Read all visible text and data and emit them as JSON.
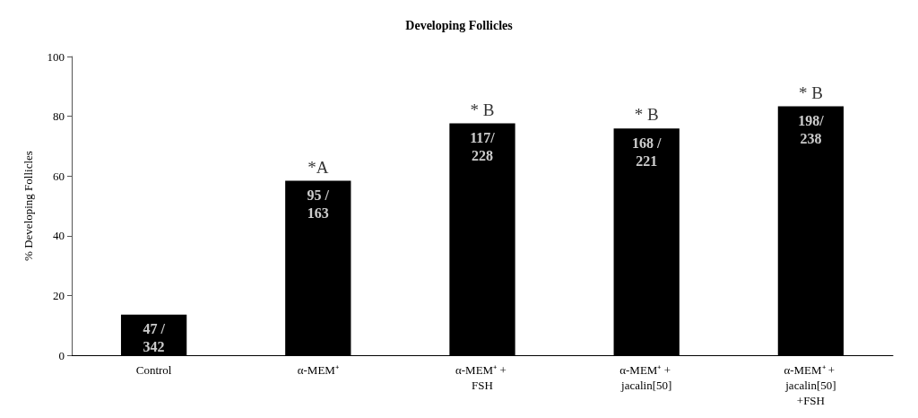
{
  "chart_data": {
    "type": "bar",
    "title": "Developing Follicles",
    "ylabel": "% Developing Follicles",
    "categories": [
      "Control",
      "α-MEM⁺",
      "α-MEM⁺ + FSH",
      "α-MEM⁺ + jacalin[50]",
      "α-MEM⁺ + jacalin[50]+FSH"
    ],
    "values": [
      13.6,
      58.4,
      77.6,
      75.9,
      83.3
    ],
    "color": "#000000",
    "annotations": [
      {
        "text": "47 / 342",
        "x": "Control",
        "y": 13.6
      },
      {
        "text": "95 / 163",
        "x": "α-MEM⁺",
        "y": 58.4
      },
      {
        "text": "117/228",
        "x": "α-MEM⁺ + FSH",
        "y": 77.6
      },
      {
        "text": "168 / 221",
        "x": "α-MEM⁺ + jacalin[50]",
        "y": 75.9
      },
      {
        "text": "198/238",
        "x": "α-MEM⁺ + jacalin[50]+FSH",
        "y": 83.3
      },
      {
        "text": "*A",
        "x": "α-MEM⁺",
        "y": 58.4
      },
      {
        "text": "* B",
        "x": "α-MEM⁺ + FSH",
        "y": 77.6
      },
      {
        "text": "* B",
        "x": "α-MEM⁺ + jacalin[50]",
        "y": 75.9
      },
      {
        "text": "* B",
        "x": "α-MEM⁺ + jacalin[50]+FSH",
        "y": 83.3
      }
    ],
    "ylim": [
      0,
      100
    ],
    "yticks": [
      0,
      20,
      40,
      60,
      80,
      100
    ],
    "grid": false
  }
}
